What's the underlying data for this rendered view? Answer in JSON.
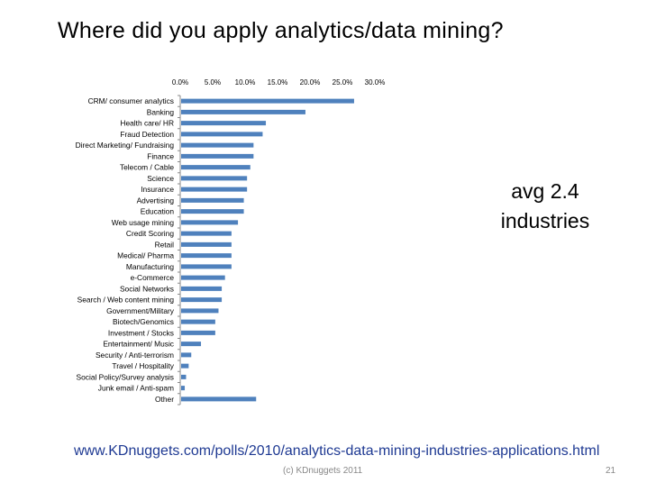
{
  "slide": {
    "title": "Where did you apply analytics/data mining?",
    "callout_line1": "avg 2.4",
    "callout_line2": "industries",
    "source_url": "www.KDnuggets.com/polls/2010/analytics-data-mining-industries-applications.html",
    "footer_center": "(c) KDnuggets 2011",
    "page_number": "21"
  },
  "chart_data": {
    "type": "bar",
    "orientation": "horizontal",
    "title": "",
    "xlabel": "",
    "ylabel": "",
    "xlim": [
      0,
      30
    ],
    "x_ticks": [
      "0.0%",
      "5.0%",
      "10.0%",
      "15.0%",
      "20.0%",
      "25.0%",
      "30.0%"
    ],
    "x_axis_position": "top",
    "grid": false,
    "legend": "none",
    "bar_color": "#4f81bd",
    "categories": [
      "CRM/ consumer analytics",
      "Banking",
      "Health care/ HR",
      "Fraud Detection",
      "Direct Marketing/ Fundraising",
      "Finance",
      "Telecom / Cable",
      "Science",
      "Insurance",
      "Advertising",
      "Education",
      "Web usage mining",
      "Credit Scoring",
      "Retail",
      "Medical/ Pharma",
      "Manufacturing",
      "e-Commerce",
      "Social Networks",
      "Search / Web content mining",
      "Government/Military",
      "Biotech/Genomics",
      "Investment / Stocks",
      "Entertainment/ Music",
      "Security / Anti-terrorism",
      "Travel / Hospitality",
      "Social Policy/Survey analysis",
      "Junk email / Anti-spam",
      "Other"
    ],
    "values": [
      26.8,
      19.3,
      13.2,
      12.7,
      11.3,
      11.3,
      10.8,
      10.3,
      10.3,
      9.8,
      9.8,
      8.9,
      7.9,
      7.9,
      7.9,
      7.9,
      6.9,
      6.4,
      6.4,
      5.9,
      5.4,
      5.4,
      3.2,
      1.7,
      1.3,
      0.9,
      0.7,
      11.7
    ]
  }
}
